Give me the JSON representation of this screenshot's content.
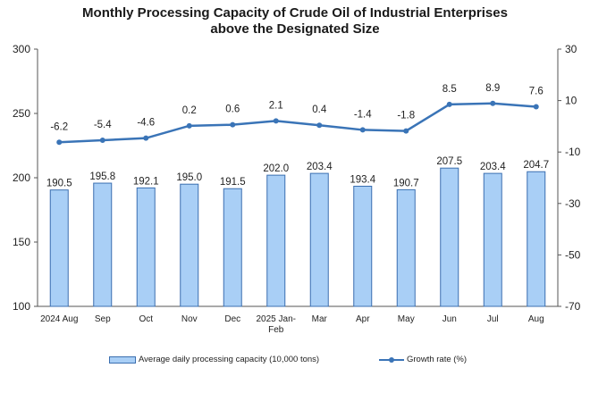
{
  "chart_data": {
    "type": "bar+line",
    "title_lines": [
      "Monthly Processing Capacity of Crude Oil of Industrial Enterprises",
      "above the Designated Size"
    ],
    "categories": [
      [
        "2024 Aug"
      ],
      [
        "Sep"
      ],
      [
        "Oct"
      ],
      [
        "Nov"
      ],
      [
        "Dec"
      ],
      [
        "2025 Jan-",
        "Feb"
      ],
      [
        "Mar"
      ],
      [
        "Apr"
      ],
      [
        "May"
      ],
      [
        "Jun"
      ],
      [
        "Jul"
      ],
      [
        "Aug"
      ]
    ],
    "series": [
      {
        "name": "Average daily processing capacity (10,000 tons)",
        "type": "bar",
        "axis": "left",
        "values": [
          190.5,
          195.8,
          192.1,
          195.0,
          191.5,
          202.0,
          203.4,
          193.4,
          190.7,
          207.5,
          203.4,
          204.7
        ],
        "labels": [
          "190.5",
          "195.8",
          "192.1",
          "195.0",
          "191.5",
          "202.0",
          "203.4",
          "193.4",
          "190.7",
          "207.5",
          "203.4",
          "204.7"
        ]
      },
      {
        "name": "Growth rate (%)",
        "type": "line",
        "axis": "right",
        "values": [
          -6.2,
          -5.4,
          -4.6,
          0.2,
          0.6,
          2.1,
          0.4,
          -1.4,
          -1.8,
          8.5,
          8.9,
          7.6
        ],
        "labels": [
          "-6.2",
          "-5.4",
          "-4.6",
          "0.2",
          "0.6",
          "2.1",
          "0.4",
          "-1.4",
          "-1.8",
          "8.5",
          "8.9",
          "7.6"
        ]
      }
    ],
    "left_axis": {
      "min": 100,
      "max": 300,
      "ticks": [
        100,
        150,
        200,
        250,
        300
      ]
    },
    "right_axis": {
      "min": -70,
      "max": 30,
      "ticks": [
        -70,
        -50,
        -30,
        -10,
        10,
        30
      ]
    },
    "grid": false,
    "legend_position": "bottom",
    "colors": {
      "bar_fill": "#a9cff6",
      "bar_stroke": "#3b6fb0",
      "line": "#3a74b7",
      "axis": "#555555"
    }
  }
}
